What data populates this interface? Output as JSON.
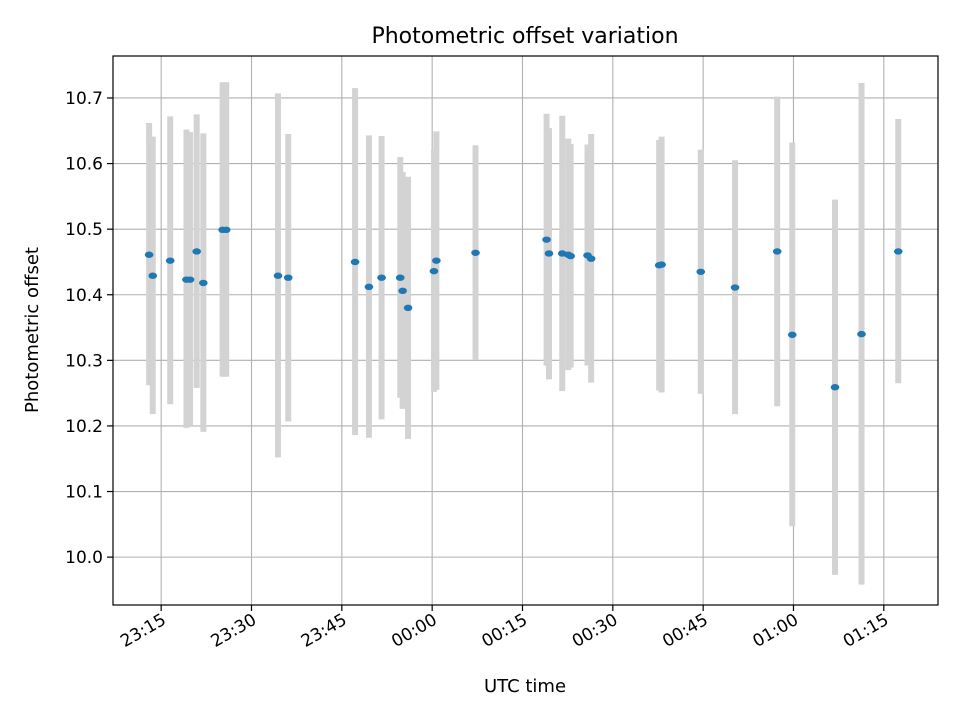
{
  "chart_data": {
    "type": "scatter",
    "title": "Photometric offset variation",
    "xlabel": "UTC time",
    "ylabel": "Photometric offset",
    "xlim": [
      "23:07:00",
      "01:24:00"
    ],
    "ylim": [
      9.927,
      10.764
    ],
    "x_ticks": [
      "23:15",
      "23:30",
      "23:45",
      "00:00",
      "00:15",
      "00:30",
      "00:45",
      "01:00",
      "01:15"
    ],
    "x_tick_minutes": [
      -45,
      -30,
      -15,
      0,
      15,
      30,
      45,
      60,
      75
    ],
    "y_ticks": [
      "10.0",
      "10.1",
      "10.2",
      "10.3",
      "10.4",
      "10.5",
      "10.6",
      "10.7"
    ],
    "grid": true,
    "points_color": "#1f77b4",
    "errorbar_color": "#d3d3d3",
    "points": [
      {
        "t": "23:13:00",
        "y": 10.461,
        "lo": 10.262,
        "hi": 10.662
      },
      {
        "t": "23:13:36",
        "y": 10.429,
        "lo": 10.218,
        "hi": 10.641
      },
      {
        "t": "23:16:30",
        "y": 10.452,
        "lo": 10.233,
        "hi": 10.672
      },
      {
        "t": "23:19:12",
        "y": 10.423,
        "lo": 10.197,
        "hi": 10.652
      },
      {
        "t": "23:19:48",
        "y": 10.423,
        "lo": 10.2,
        "hi": 10.648
      },
      {
        "t": "23:20:54",
        "y": 10.466,
        "lo": 10.258,
        "hi": 10.675
      },
      {
        "t": "23:22:00",
        "y": 10.418,
        "lo": 10.191,
        "hi": 10.646
      },
      {
        "t": "23:25:12",
        "y": 10.499,
        "lo": 10.275,
        "hi": 10.724
      },
      {
        "t": "23:25:48",
        "y": 10.499,
        "lo": 10.275,
        "hi": 10.724
      },
      {
        "t": "23:34:24",
        "y": 10.429,
        "lo": 10.152,
        "hi": 10.707
      },
      {
        "t": "23:36:06",
        "y": 10.426,
        "lo": 10.207,
        "hi": 10.645
      },
      {
        "t": "23:47:12",
        "y": 10.45,
        "lo": 10.186,
        "hi": 10.715
      },
      {
        "t": "23:49:30",
        "y": 10.412,
        "lo": 10.182,
        "hi": 10.643
      },
      {
        "t": "23:51:36",
        "y": 10.426,
        "lo": 10.21,
        "hi": 10.642
      },
      {
        "t": "23:54:42",
        "y": 10.426,
        "lo": 10.243,
        "hi": 10.61
      },
      {
        "t": "23:55:06",
        "y": 10.406,
        "lo": 10.226,
        "hi": 10.587
      },
      {
        "t": "23:56:00",
        "y": 10.38,
        "lo": 10.18,
        "hi": 10.58
      },
      {
        "t": "00:00:18",
        "y": 10.436,
        "lo": 10.252,
        "hi": 10.621
      },
      {
        "t": "00:00:42",
        "y": 10.452,
        "lo": 10.255,
        "hi": 10.649
      },
      {
        "t": "00:07:12",
        "y": 10.464,
        "lo": 10.301,
        "hi": 10.628
      },
      {
        "t": "00:19:00",
        "y": 10.484,
        "lo": 10.292,
        "hi": 10.676
      },
      {
        "t": "00:19:24",
        "y": 10.463,
        "lo": 10.271,
        "hi": 10.654
      },
      {
        "t": "00:21:36",
        "y": 10.463,
        "lo": 10.253,
        "hi": 10.673
      },
      {
        "t": "00:22:36",
        "y": 10.461,
        "lo": 10.285,
        "hi": 10.638
      },
      {
        "t": "00:23:00",
        "y": 10.459,
        "lo": 10.289,
        "hi": 10.63
      },
      {
        "t": "00:25:48",
        "y": 10.46,
        "lo": 10.292,
        "hi": 10.629
      },
      {
        "t": "00:26:24",
        "y": 10.455,
        "lo": 10.266,
        "hi": 10.645
      },
      {
        "t": "00:37:42",
        "y": 10.445,
        "lo": 10.254,
        "hi": 10.636
      },
      {
        "t": "00:38:06",
        "y": 10.446,
        "lo": 10.251,
        "hi": 10.641
      },
      {
        "t": "00:44:36",
        "y": 10.435,
        "lo": 10.249,
        "hi": 10.621
      },
      {
        "t": "00:50:18",
        "y": 10.411,
        "lo": 10.218,
        "hi": 10.605
      },
      {
        "t": "00:57:18",
        "y": 10.466,
        "lo": 10.23,
        "hi": 10.702
      },
      {
        "t": "00:59:48",
        "y": 10.339,
        "lo": 10.047,
        "hi": 10.632
      },
      {
        "t": "01:06:54",
        "y": 10.259,
        "lo": 9.973,
        "hi": 10.545
      },
      {
        "t": "01:11:18",
        "y": 10.34,
        "lo": 9.958,
        "hi": 10.723
      },
      {
        "t": "01:17:24",
        "y": 10.466,
        "lo": 10.265,
        "hi": 10.668
      }
    ]
  }
}
